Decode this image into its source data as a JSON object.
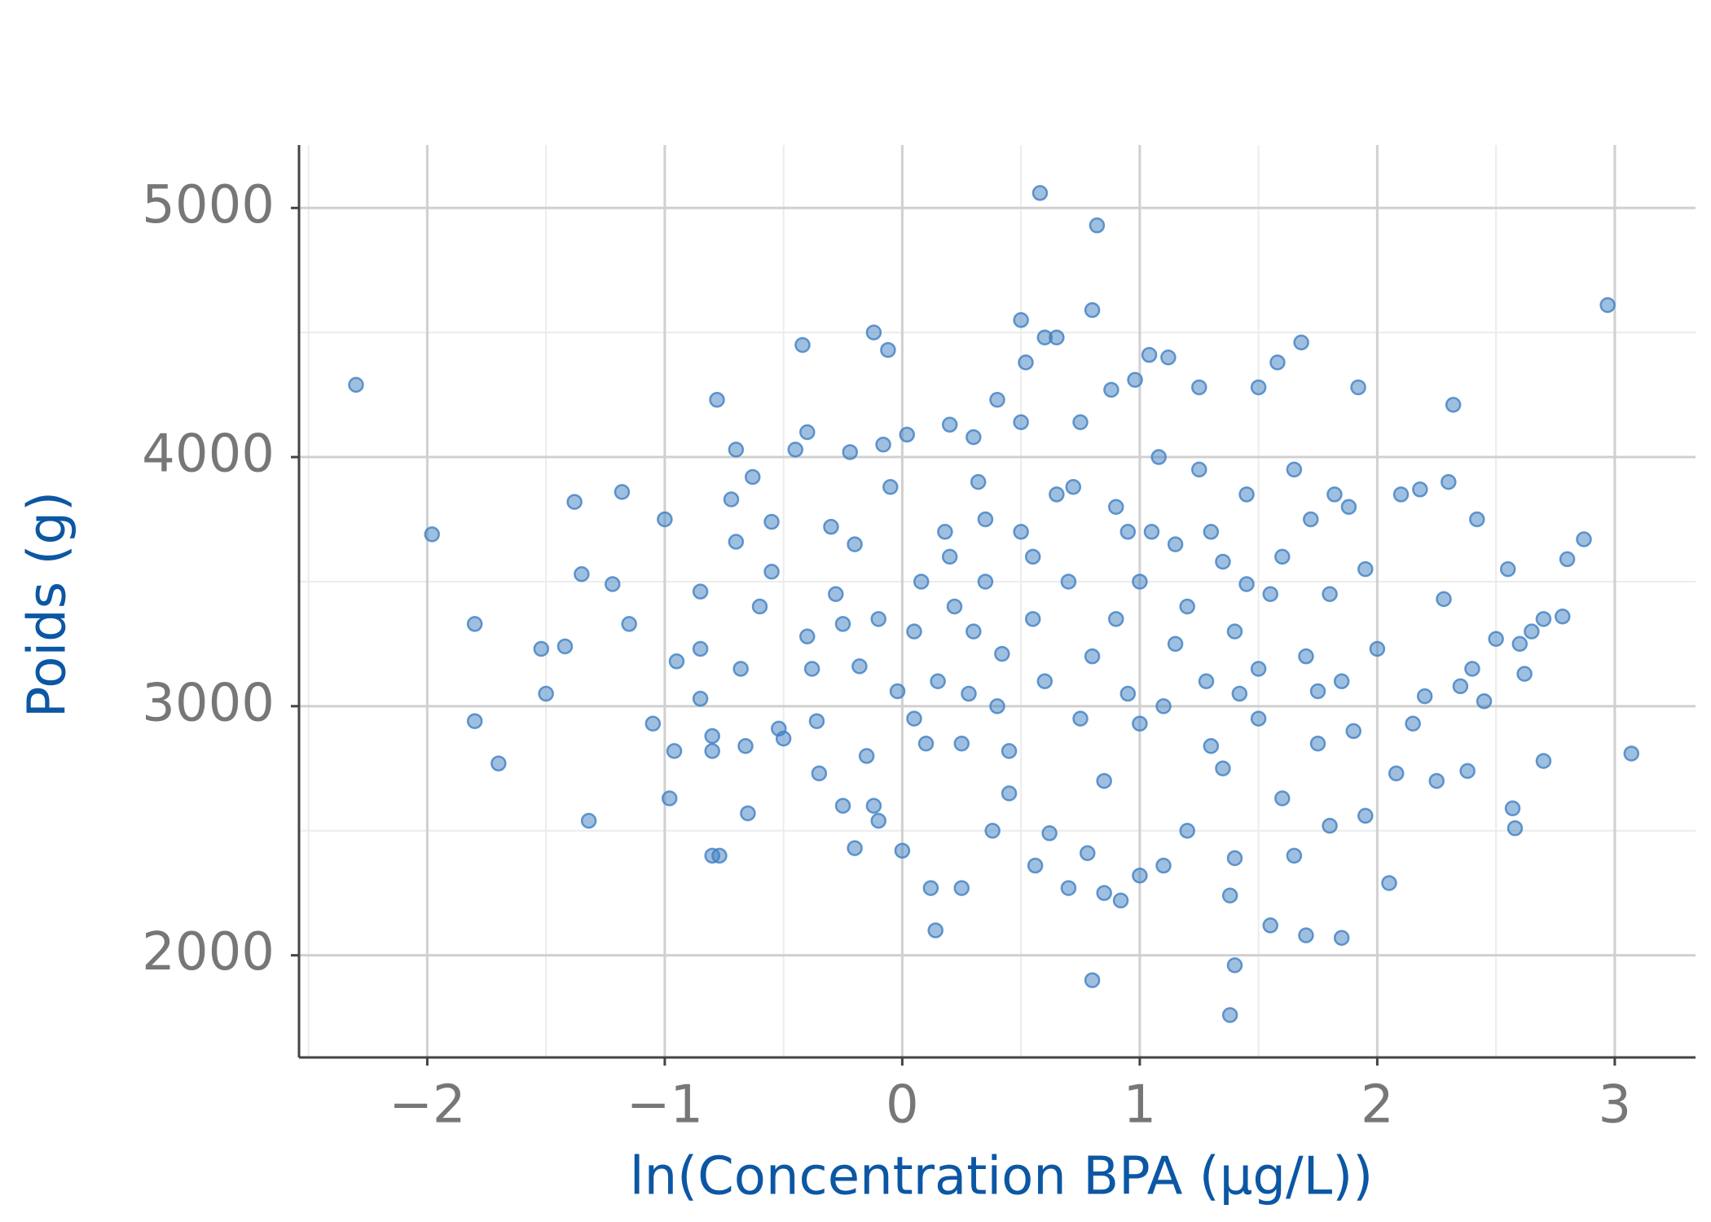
{
  "chart_data": {
    "type": "scatter",
    "x_label": "ln(Concentration BPA (µg/L))",
    "y_label": "Poids (g)",
    "color": "#3f7fc2",
    "grid": true,
    "xlim": [
      -2.54,
      3.34
    ],
    "ylim": [
      1590,
      5220
    ],
    "xticks": [
      {
        "value": -2,
        "label": "−2"
      },
      {
        "value": -1,
        "label": "−1"
      },
      0,
      1,
      2,
      3
    ],
    "yticks": [
      2000,
      3000,
      4000,
      5000
    ],
    "x": [
      -2.3,
      -1.98,
      -1.8,
      -1.8,
      -1.7,
      -1.5,
      -1.52,
      -1.42,
      -1.38,
      -1.35,
      -1.32,
      -1.22,
      -1.18,
      -1.15,
      -1.05,
      -1.0,
      -0.98,
      -0.96,
      -0.95,
      -0.85,
      -0.85,
      -0.85,
      -0.8,
      -0.8,
      -0.8,
      -0.78,
      -0.77,
      -0.72,
      -0.7,
      -0.7,
      -0.68,
      -0.66,
      -0.65,
      -0.63,
      -0.6,
      -0.55,
      -0.55,
      -0.52,
      -0.5,
      -0.45,
      -0.42,
      -0.4,
      -0.4,
      -0.38,
      -0.36,
      -0.35,
      -0.3,
      -0.28,
      -0.25,
      -0.25,
      -0.22,
      -0.2,
      -0.18,
      -0.15,
      -0.12,
      -0.12,
      -0.1,
      -0.08,
      -0.06,
      -0.05,
      -0.02,
      0.0,
      0.02,
      0.05,
      0.08,
      0.1,
      0.12,
      0.14,
      0.18,
      0.2,
      0.22,
      0.25,
      0.28,
      0.3,
      0.32,
      0.35,
      0.38,
      0.4,
      0.42,
      0.45,
      0.5,
      0.5,
      0.52,
      0.55,
      0.56,
      0.58,
      0.6,
      0.62,
      0.65,
      0.7,
      0.72,
      0.75,
      0.78,
      0.8,
      0.8,
      0.82,
      0.85,
      0.88,
      0.9,
      0.92,
      0.95,
      0.98,
      1.0,
      1.0,
      1.04,
      1.08,
      1.1,
      1.12,
      1.15,
      1.2,
      1.25,
      1.28,
      1.3,
      1.35,
      1.38,
      1.38,
      1.4,
      1.4,
      1.42,
      1.45,
      1.5,
      1.5,
      1.55,
      1.58,
      1.6,
      1.65,
      1.68,
      1.7,
      1.72,
      1.75,
      1.8,
      1.82,
      1.85,
      1.88,
      1.92,
      1.95,
      2.0,
      2.05,
      2.08,
      2.1,
      2.15,
      2.18,
      2.2,
      2.25,
      2.28,
      2.3,
      2.32,
      2.35,
      2.38,
      2.4,
      2.42,
      2.45,
      2.5,
      2.55,
      2.57,
      2.58,
      2.6,
      2.62,
      2.65,
      2.7,
      2.7,
      2.78,
      2.8,
      2.87,
      2.97,
      3.07,
      0.2,
      0.3,
      0.4,
      0.5,
      0.6,
      0.7,
      0.8,
      0.9,
      1.0,
      1.1,
      1.2,
      1.3,
      1.4,
      1.5,
      1.6,
      1.7,
      1.8,
      1.9,
      0.15,
      0.35,
      0.55,
      0.75,
      0.95,
      1.15,
      1.35,
      1.55,
      1.75,
      0.05,
      0.45,
      0.85,
      1.25,
      1.65,
      -0.1,
      -0.2,
      0.65,
      1.05,
      1.45,
      1.85,
      0.25,
      1.95
    ],
    "y": [
      4290,
      3690,
      3330,
      2940,
      2770,
      3050,
      3230,
      3240,
      3820,
      3530,
      2540,
      3490,
      3860,
      3330,
      2930,
      3750,
      2630,
      2820,
      3180,
      3460,
      3230,
      3030,
      2880,
      2820,
      2400,
      4230,
      2400,
      3830,
      4030,
      3660,
      3150,
      2840,
      2570,
      3920,
      3400,
      3740,
      3540,
      2910,
      2870,
      4030,
      4450,
      4100,
      3280,
      3150,
      2940,
      2730,
      3720,
      3450,
      3330,
      2600,
      4020,
      2430,
      3160,
      2800,
      4500,
      2600,
      2540,
      4050,
      4430,
      3880,
      3060,
      2420,
      4090,
      3300,
      3500,
      2850,
      2270,
      2100,
      3700,
      4130,
      3400,
      2270,
      3050,
      4080,
      3900,
      3500,
      2500,
      4230,
      3210,
      2820,
      4550,
      4140,
      4380,
      3600,
      2360,
      5060,
      4480,
      2490,
      4480,
      2270,
      3880,
      4140,
      2410,
      4590,
      1900,
      4930,
      2250,
      4270,
      3350,
      2220,
      3700,
      4310,
      2320,
      2930,
      4410,
      4000,
      2360,
      4400,
      3650,
      2500,
      4280,
      3100,
      2840,
      3580,
      2240,
      1760,
      1960,
      2390,
      3050,
      3490,
      4280,
      3150,
      2120,
      4380,
      2630,
      2400,
      4460,
      2080,
      3750,
      3060,
      2520,
      3850,
      2070,
      3800,
      4280,
      2560,
      3230,
      2290,
      2730,
      3850,
      2930,
      3870,
      3040,
      2700,
      3430,
      3900,
      4210,
      3080,
      2740,
      3150,
      3750,
      3020,
      3270,
      3550,
      2590,
      2510,
      3250,
      3130,
      3300,
      3350,
      2780,
      3360,
      3590,
      3670,
      4610,
      2810,
      3600,
      3300,
      3000,
      3700,
      3100,
      3500,
      3200,
      3800,
      3500,
      3000,
      3400,
      3700,
      3300,
      2950,
      3600,
      3200,
      3450,
      2900,
      3100,
      3750,
      3350,
      2950,
      3050,
      3250,
      2750,
      3450,
      2850,
      2950,
      2650,
      2700,
      3950,
      3950,
      3350,
      3650,
      3850,
      3700,
      3850,
      3100,
      2850,
      3550
    ]
  }
}
